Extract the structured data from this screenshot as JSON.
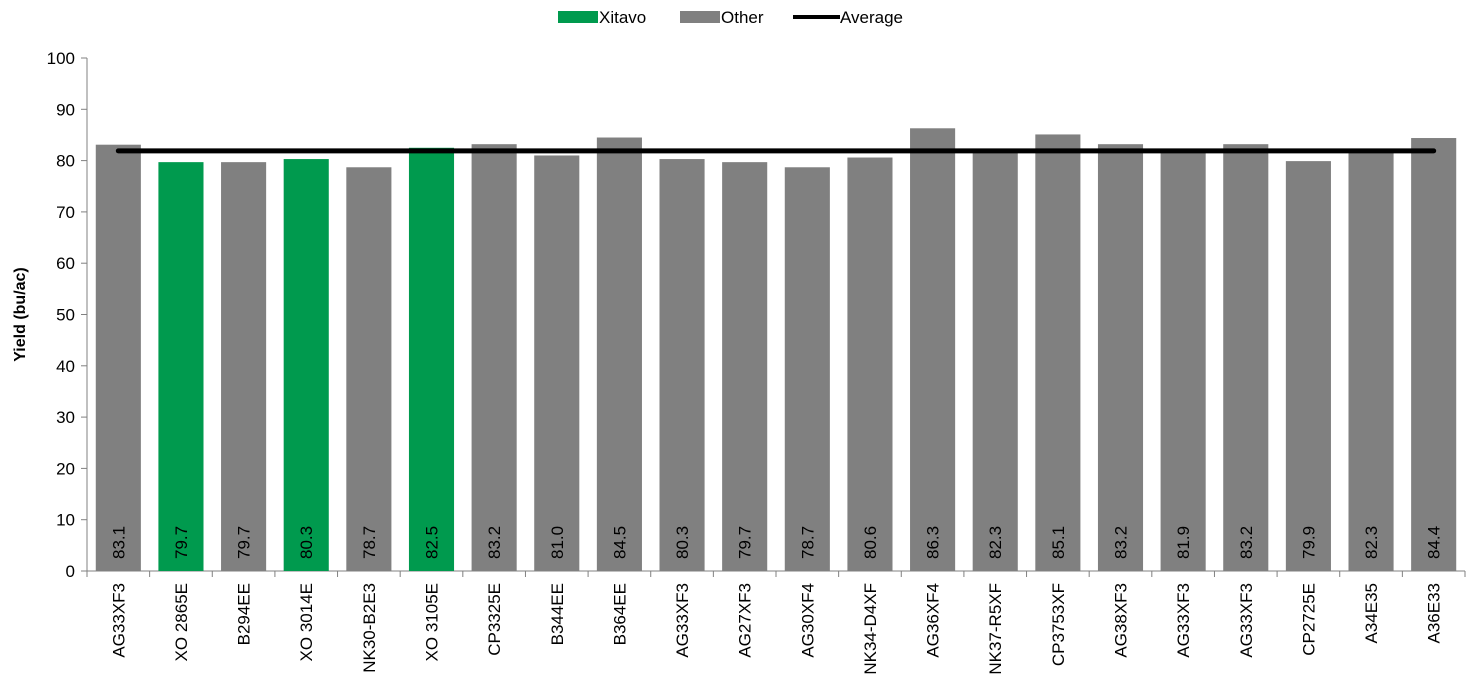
{
  "chart_data": {
    "type": "bar",
    "ylabel": "Yield (bu/ac)",
    "ylim": [
      0,
      100
    ],
    "yticks": [
      0,
      10,
      20,
      30,
      40,
      50,
      60,
      70,
      80,
      90,
      100
    ],
    "grid": false,
    "legend_position": "top-center",
    "legend": [
      {
        "label": "Xitavo",
        "kind": "bar",
        "color": "#009a4e"
      },
      {
        "label": "Other",
        "kind": "bar",
        "color": "#808080"
      },
      {
        "label": "Average",
        "kind": "line",
        "color": "#000000"
      }
    ],
    "categories": [
      "AG33XF3",
      "XO 2865E",
      "B294EE",
      "XO 3014E",
      "NK30-B2E3",
      "XO 3105E",
      "CP3325E",
      "B344EE",
      "B364EE",
      "AG33XF3",
      "AG27XF3",
      "AG30XF4",
      "NK34-D4XF",
      "AG36XF4",
      "NK37-R5XF",
      "CP3753XF",
      "AG38XF3",
      "AG33XF3",
      "AG33XF3",
      "CP2725E",
      "A34E35",
      "A36E33"
    ],
    "values": [
      83.1,
      79.7,
      79.7,
      80.3,
      78.7,
      82.5,
      83.2,
      81.0,
      84.5,
      80.3,
      79.7,
      78.7,
      80.6,
      86.3,
      82.3,
      85.1,
      83.2,
      81.9,
      83.2,
      79.9,
      82.3,
      84.4
    ],
    "value_labels": [
      "83.1",
      "79.7",
      "79.7",
      "80.3",
      "78.7",
      "82.5",
      "83.2",
      "81.0",
      "84.5",
      "80.3",
      "79.7",
      "78.7",
      "80.6",
      "86.3",
      "82.3",
      "85.1",
      "83.2",
      "81.9",
      "83.2",
      "79.9",
      "82.3",
      "84.4"
    ],
    "groups": [
      "Other",
      "Xitavo",
      "Other",
      "Xitavo",
      "Other",
      "Xitavo",
      "Other",
      "Other",
      "Other",
      "Other",
      "Other",
      "Other",
      "Other",
      "Other",
      "Other",
      "Other",
      "Other",
      "Other",
      "Other",
      "Other",
      "Other",
      "Other"
    ],
    "average": 81.9,
    "colors": {
      "Xitavo": "#009a4e",
      "Other": "#808080",
      "Average": "#000000"
    }
  }
}
